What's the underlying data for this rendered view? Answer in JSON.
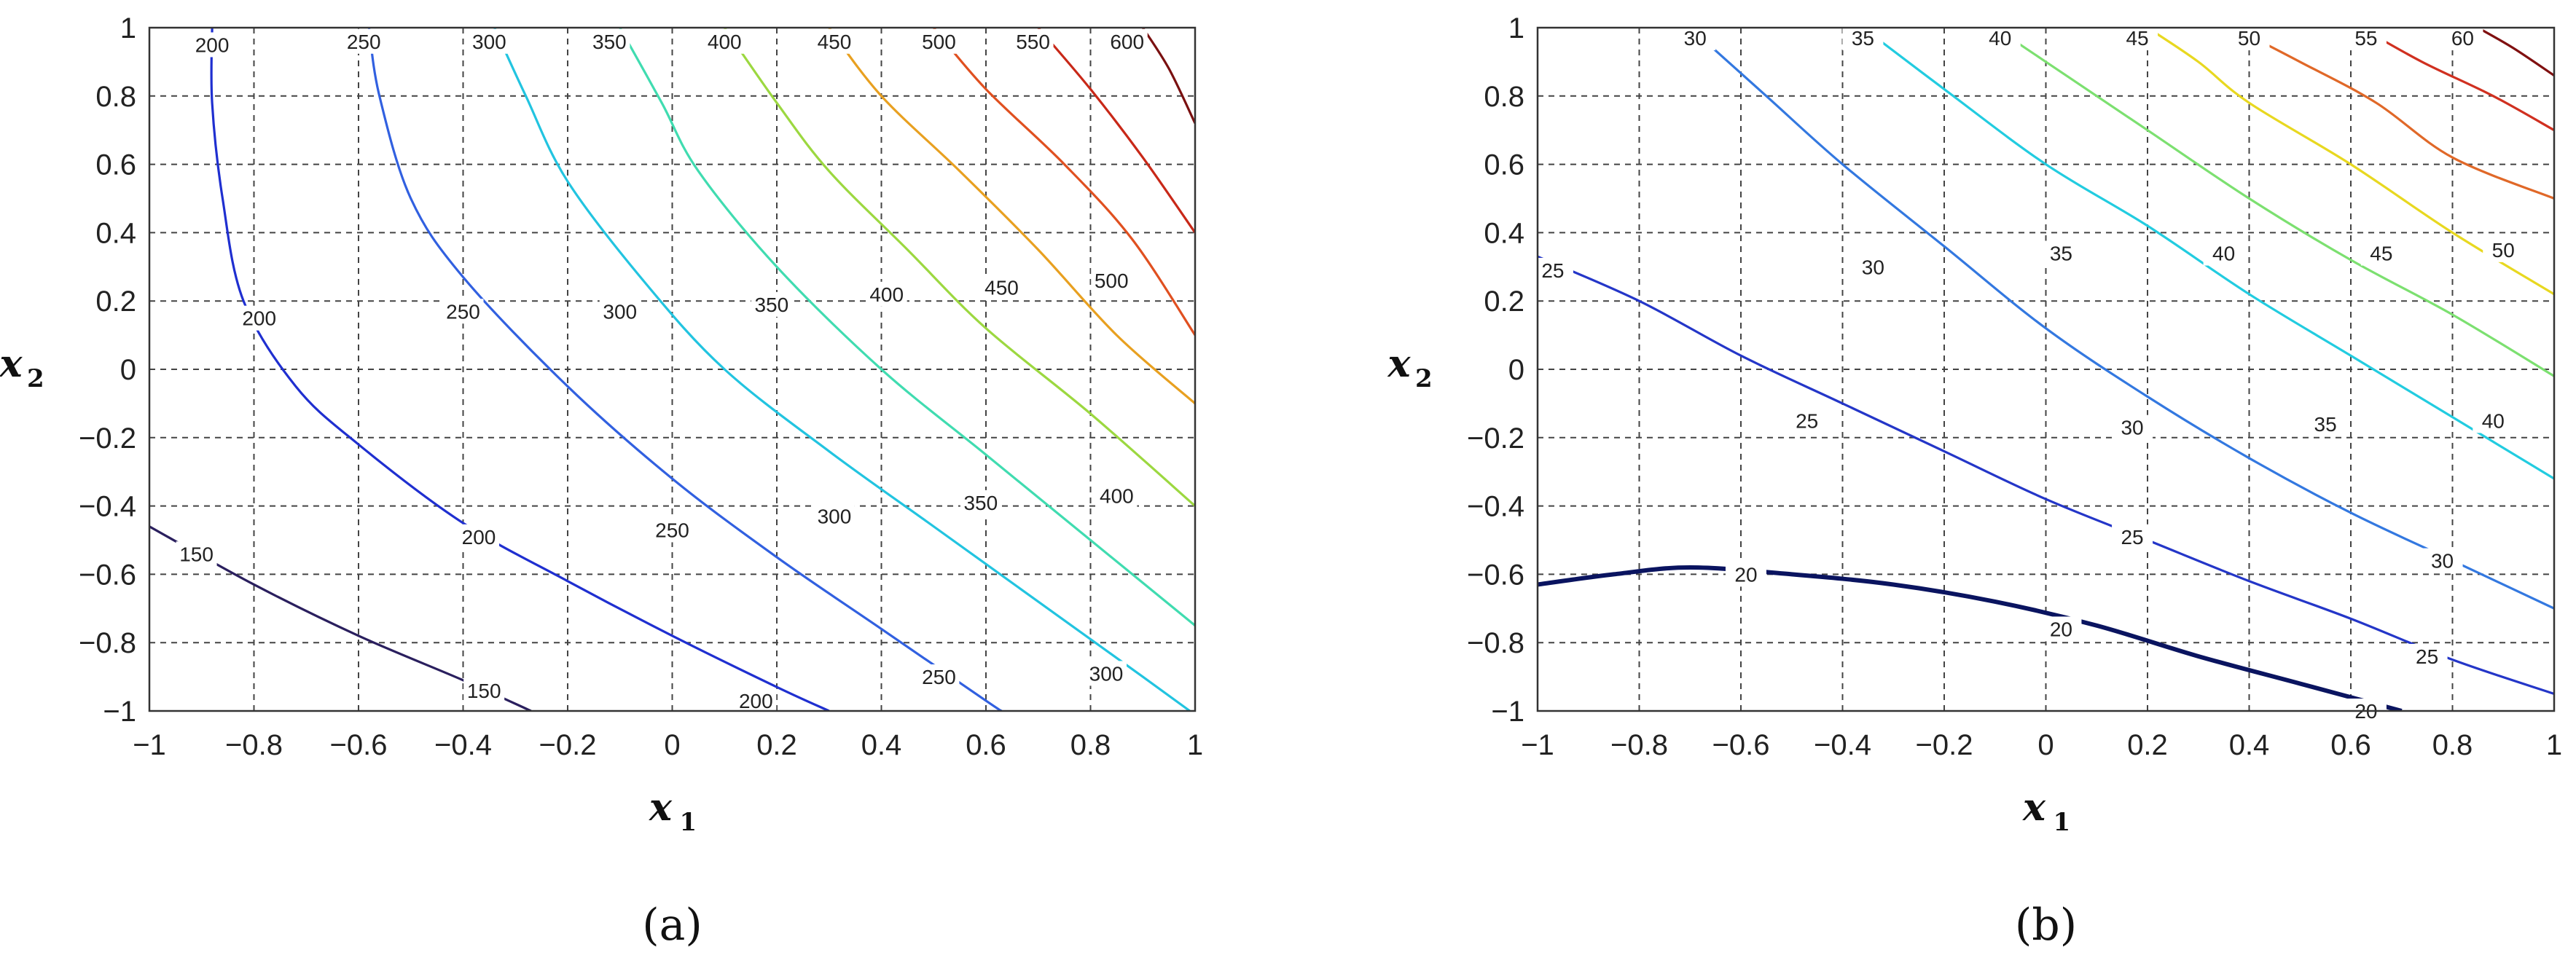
{
  "chart_data": [
    {
      "type": "contour",
      "panel_label": "(a)",
      "xlabel": "x",
      "xlabel_sub": "1",
      "ylabel": "x",
      "ylabel_sub": "2",
      "xlim": [
        -1,
        1
      ],
      "ylim": [
        -1,
        1
      ],
      "xticks": [
        -1,
        -0.8,
        -0.6,
        -0.4,
        -0.2,
        0,
        0.2,
        0.4,
        0.6,
        0.8,
        1
      ],
      "yticks": [
        -1,
        -0.8,
        -0.6,
        -0.4,
        -0.2,
        0,
        0.2,
        0.4,
        0.6,
        0.8,
        1
      ],
      "xtick_labels": [
        "−1",
        "−0.8",
        "−0.6",
        "−0.4",
        "−0.2",
        "0",
        "0.2",
        "0.4",
        "0.6",
        "0.8",
        "1"
      ],
      "ytick_labels": [
        "−1",
        "−0.8",
        "−0.6",
        "−0.4",
        "−0.2",
        "0",
        "0.2",
        "0.4",
        "0.6",
        "0.8",
        "1"
      ],
      "grid": true,
      "levels": [
        {
          "value": 150,
          "label": "150",
          "color": "#2a1f5e",
          "points": [
            [
              -1,
              -0.46
            ],
            [
              -0.8,
              -0.63
            ],
            [
              -0.6,
              -0.78
            ],
            [
              -0.4,
              -0.91
            ],
            [
              -0.27,
              -1.0
            ]
          ],
          "labels": [
            {
              "x": -0.91,
              "y": -0.54,
              "text": "150"
            },
            {
              "x": -0.36,
              "y": -0.94,
              "text": "150"
            }
          ]
        },
        {
          "value": 200,
          "label": "200",
          "color": "#1f2fd0",
          "points": [
            [
              -0.88,
              1.0
            ],
            [
              -0.88,
              0.78
            ],
            [
              -0.86,
              0.5
            ],
            [
              -0.82,
              0.2
            ],
            [
              -0.72,
              -0.05
            ],
            [
              -0.6,
              -0.22
            ],
            [
              -0.4,
              -0.45
            ],
            [
              -0.2,
              -0.62
            ],
            [
              0,
              -0.78
            ],
            [
              0.2,
              -0.93
            ],
            [
              0.3,
              -1.0
            ]
          ],
          "labels": [
            {
              "x": -0.88,
              "y": 0.95,
              "text": "200"
            },
            {
              "x": -0.79,
              "y": 0.15,
              "text": "200"
            },
            {
              "x": -0.37,
              "y": -0.49,
              "text": "200"
            },
            {
              "x": 0.16,
              "y": -0.97,
              "text": "200"
            }
          ]
        },
        {
          "value": 250,
          "label": "250",
          "color": "#3160e0",
          "points": [
            [
              -0.58,
              1.0
            ],
            [
              -0.56,
              0.8
            ],
            [
              -0.5,
              0.5
            ],
            [
              -0.4,
              0.27
            ],
            [
              -0.2,
              -0.05
            ],
            [
              0,
              -0.32
            ],
            [
              0.2,
              -0.55
            ],
            [
              0.4,
              -0.76
            ],
            [
              0.6,
              -0.97
            ],
            [
              0.63,
              -1.0
            ]
          ],
          "labels": [
            {
              "x": -0.59,
              "y": 0.96,
              "text": "250"
            },
            {
              "x": -0.4,
              "y": 0.17,
              "text": "250"
            },
            {
              "x": 0.0,
              "y": -0.47,
              "text": "250"
            },
            {
              "x": 0.51,
              "y": -0.9,
              "text": "250"
            }
          ]
        },
        {
          "value": 300,
          "label": "300",
          "color": "#22c4e0",
          "points": [
            [
              -0.34,
              1.0
            ],
            [
              -0.28,
              0.8
            ],
            [
              -0.2,
              0.55
            ],
            [
              -0.05,
              0.25
            ],
            [
              0.1,
              0.0
            ],
            [
              0.3,
              -0.24
            ],
            [
              0.5,
              -0.46
            ],
            [
              0.7,
              -0.68
            ],
            [
              0.9,
              -0.9
            ],
            [
              0.99,
              -1.0
            ]
          ],
          "labels": [
            {
              "x": -0.35,
              "y": 0.96,
              "text": "300"
            },
            {
              "x": -0.1,
              "y": 0.17,
              "text": "300"
            },
            {
              "x": 0.31,
              "y": -0.43,
              "text": "300"
            },
            {
              "x": 0.83,
              "y": -0.89,
              "text": "300"
            }
          ]
        },
        {
          "value": 350,
          "label": "350",
          "color": "#40dcb0",
          "points": [
            [
              -0.1,
              1.0
            ],
            [
              -0.02,
              0.78
            ],
            [
              0.05,
              0.58
            ],
            [
              0.2,
              0.3
            ],
            [
              0.4,
              0.0
            ],
            [
              0.6,
              -0.25
            ],
            [
              0.8,
              -0.5
            ],
            [
              1.0,
              -0.75
            ]
          ],
          "labels": [
            {
              "x": -0.12,
              "y": 0.96,
              "text": "350"
            },
            {
              "x": 0.19,
              "y": 0.19,
              "text": "350"
            },
            {
              "x": 0.59,
              "y": -0.39,
              "text": "350"
            }
          ]
        },
        {
          "value": 400,
          "label": "400",
          "color": "#9cd840",
          "points": [
            [
              0.1,
              1.0
            ],
            [
              0.2,
              0.78
            ],
            [
              0.3,
              0.58
            ],
            [
              0.45,
              0.35
            ],
            [
              0.6,
              0.12
            ],
            [
              0.8,
              -0.13
            ],
            [
              1.0,
              -0.4
            ]
          ],
          "labels": [
            {
              "x": 0.1,
              "y": 0.96,
              "text": "400"
            },
            {
              "x": 0.41,
              "y": 0.22,
              "text": "400"
            },
            {
              "x": 0.85,
              "y": -0.37,
              "text": "400"
            }
          ]
        },
        {
          "value": 450,
          "label": "450",
          "color": "#e8a020",
          "points": [
            [
              0.3,
              1.0
            ],
            [
              0.4,
              0.8
            ],
            [
              0.55,
              0.58
            ],
            [
              0.7,
              0.35
            ],
            [
              0.85,
              0.1
            ],
            [
              1.0,
              -0.1
            ]
          ],
          "labels": [
            {
              "x": 0.31,
              "y": 0.96,
              "text": "450"
            },
            {
              "x": 0.63,
              "y": 0.24,
              "text": "450"
            }
          ]
        },
        {
          "value": 500,
          "label": "500",
          "color": "#e05020",
          "points": [
            [
              0.5,
              1.0
            ],
            [
              0.6,
              0.82
            ],
            [
              0.75,
              0.6
            ],
            [
              0.88,
              0.38
            ],
            [
              1.0,
              0.1
            ]
          ],
          "labels": [
            {
              "x": 0.51,
              "y": 0.96,
              "text": "500"
            },
            {
              "x": 0.84,
              "y": 0.26,
              "text": "500"
            }
          ]
        },
        {
          "value": 550,
          "label": "550",
          "color": "#c82818",
          "points": [
            [
              0.7,
              1.0
            ],
            [
              0.8,
              0.82
            ],
            [
              0.9,
              0.62
            ],
            [
              1.0,
              0.4
            ]
          ],
          "labels": [
            {
              "x": 0.69,
              "y": 0.96,
              "text": "550"
            }
          ]
        },
        {
          "value": 600,
          "label": "600",
          "color": "#7a1010",
          "points": [
            [
              0.9,
              1.0
            ],
            [
              0.95,
              0.88
            ],
            [
              1.0,
              0.72
            ]
          ],
          "labels": [
            {
              "x": 0.87,
              "y": 0.96,
              "text": "600"
            }
          ]
        }
      ]
    },
    {
      "type": "contour",
      "panel_label": "(b)",
      "xlabel": "x",
      "xlabel_sub": "1",
      "ylabel": "x",
      "ylabel_sub": "2",
      "xlim": [
        -1,
        1
      ],
      "ylim": [
        -1,
        1
      ],
      "xticks": [
        -1,
        -0.8,
        -0.6,
        -0.4,
        -0.2,
        0,
        0.2,
        0.4,
        0.6,
        0.8,
        1
      ],
      "yticks": [
        -1,
        -0.8,
        -0.6,
        -0.4,
        -0.2,
        0,
        0.2,
        0.4,
        0.6,
        0.8,
        1
      ],
      "xtick_labels": [
        "−1",
        "−0.8",
        "−0.6",
        "−0.4",
        "−0.2",
        "0",
        "0.2",
        "0.4",
        "0.6",
        "0.8",
        "1"
      ],
      "ytick_labels": [
        "−1",
        "−0.8",
        "−0.6",
        "−0.4",
        "−0.2",
        "0",
        "0.2",
        "0.4",
        "0.6",
        "0.8",
        "1"
      ],
      "grid": true,
      "levels": [
        {
          "value": 20,
          "label": "20",
          "color": "#0a1460",
          "points": [
            [
              -1,
              -0.63
            ],
            [
              -0.85,
              -0.6
            ],
            [
              -0.7,
              -0.58
            ],
            [
              -0.5,
              -0.6
            ],
            [
              -0.3,
              -0.63
            ],
            [
              -0.1,
              -0.68
            ],
            [
              0.1,
              -0.75
            ],
            [
              0.3,
              -0.84
            ],
            [
              0.5,
              -0.92
            ],
            [
              0.7,
              -1.0
            ]
          ],
          "labels": [
            {
              "x": -0.59,
              "y": -0.6,
              "text": "20"
            },
            {
              "x": 0.03,
              "y": -0.76,
              "text": "20"
            },
            {
              "x": 0.63,
              "y": -1.0,
              "text": "20"
            }
          ]
        },
        {
          "value": 25,
          "label": "25",
          "color": "#2436c8",
          "points": [
            [
              -1,
              0.33
            ],
            [
              -0.8,
              0.2
            ],
            [
              -0.6,
              0.04
            ],
            [
              -0.4,
              -0.1
            ],
            [
              -0.2,
              -0.24
            ],
            [
              0,
              -0.38
            ],
            [
              0.2,
              -0.5
            ],
            [
              0.4,
              -0.62
            ],
            [
              0.6,
              -0.73
            ],
            [
              0.8,
              -0.85
            ],
            [
              1.0,
              -0.95
            ]
          ],
          "labels": [
            {
              "x": -0.97,
              "y": 0.29,
              "text": "25"
            },
            {
              "x": -0.47,
              "y": -0.15,
              "text": "25"
            },
            {
              "x": 0.17,
              "y": -0.49,
              "text": "25"
            },
            {
              "x": 0.75,
              "y": -0.84,
              "text": "25"
            }
          ]
        },
        {
          "value": 30,
          "label": "30",
          "color": "#3378e0",
          "points": [
            [
              -0.7,
              1.0
            ],
            [
              -0.55,
              0.8
            ],
            [
              -0.4,
              0.6
            ],
            [
              -0.2,
              0.36
            ],
            [
              0,
              0.12
            ],
            [
              0.2,
              -0.08
            ],
            [
              0.4,
              -0.26
            ],
            [
              0.6,
              -0.42
            ],
            [
              0.8,
              -0.56
            ],
            [
              1.0,
              -0.7
            ]
          ],
          "labels": [
            {
              "x": -0.69,
              "y": 0.97,
              "text": "30"
            },
            {
              "x": -0.34,
              "y": 0.3,
              "text": "30"
            },
            {
              "x": 0.17,
              "y": -0.17,
              "text": "30"
            },
            {
              "x": 0.78,
              "y": -0.56,
              "text": "30"
            }
          ]
        },
        {
          "value": 35,
          "label": "35",
          "color": "#22cce0",
          "points": [
            [
              -0.36,
              1.0
            ],
            [
              -0.2,
              0.82
            ],
            [
              0,
              0.6
            ],
            [
              0.2,
              0.42
            ],
            [
              0.4,
              0.22
            ],
            [
              0.6,
              0.04
            ],
            [
              0.8,
              -0.14
            ],
            [
              1.0,
              -0.32
            ]
          ],
          "labels": [
            {
              "x": -0.36,
              "y": 0.97,
              "text": "35"
            },
            {
              "x": 0.03,
              "y": 0.34,
              "text": "35"
            },
            {
              "x": 0.55,
              "y": -0.16,
              "text": "35"
            }
          ]
        },
        {
          "value": 40,
          "label": "40",
          "color": "#7ce070",
          "points": [
            [
              -0.1,
              1.0
            ],
            [
              0.05,
              0.85
            ],
            [
              0.2,
              0.7
            ],
            [
              0.4,
              0.5
            ],
            [
              0.6,
              0.32
            ],
            [
              0.8,
              0.16
            ],
            [
              1.0,
              -0.02
            ]
          ],
          "labels": [
            {
              "x": -0.09,
              "y": 0.97,
              "text": "40"
            },
            {
              "x": 0.35,
              "y": 0.34,
              "text": "40"
            },
            {
              "x": 0.88,
              "y": -0.15,
              "text": "40"
            }
          ]
        },
        {
          "value": 45,
          "label": "45",
          "color": "#e8d820",
          "points": [
            [
              0.2,
              1.0
            ],
            [
              0.3,
              0.9
            ],
            [
              0.4,
              0.78
            ],
            [
              0.6,
              0.6
            ],
            [
              0.8,
              0.4
            ],
            [
              1.0,
              0.22
            ]
          ],
          "labels": [
            {
              "x": 0.18,
              "y": 0.97,
              "text": "45"
            },
            {
              "x": 0.66,
              "y": 0.34,
              "text": "45"
            }
          ]
        },
        {
          "value": 50,
          "label": "50",
          "color": "#e06828",
          "points": [
            [
              0.37,
              1.0
            ],
            [
              0.5,
              0.9
            ],
            [
              0.65,
              0.78
            ],
            [
              0.8,
              0.62
            ],
            [
              1.0,
              0.5
            ]
          ],
          "labels": [
            {
              "x": 0.4,
              "y": 0.97,
              "text": "50"
            },
            {
              "x": 0.9,
              "y": 0.35,
              "text": "50"
            }
          ]
        },
        {
          "value": 55,
          "label": "55",
          "color": "#d03020",
          "points": [
            [
              0.62,
              1.0
            ],
            [
              0.74,
              0.9
            ],
            [
              0.88,
              0.8
            ],
            [
              1.0,
              0.7
            ]
          ],
          "labels": [
            {
              "x": 0.63,
              "y": 0.97,
              "text": "55"
            }
          ]
        },
        {
          "value": 60,
          "label": "60",
          "color": "#801010",
          "points": [
            [
              0.85,
              1.0
            ],
            [
              0.92,
              0.94
            ],
            [
              1.0,
              0.86
            ]
          ],
          "labels": [
            {
              "x": 0.82,
              "y": 0.97,
              "text": "60"
            }
          ]
        }
      ]
    }
  ]
}
